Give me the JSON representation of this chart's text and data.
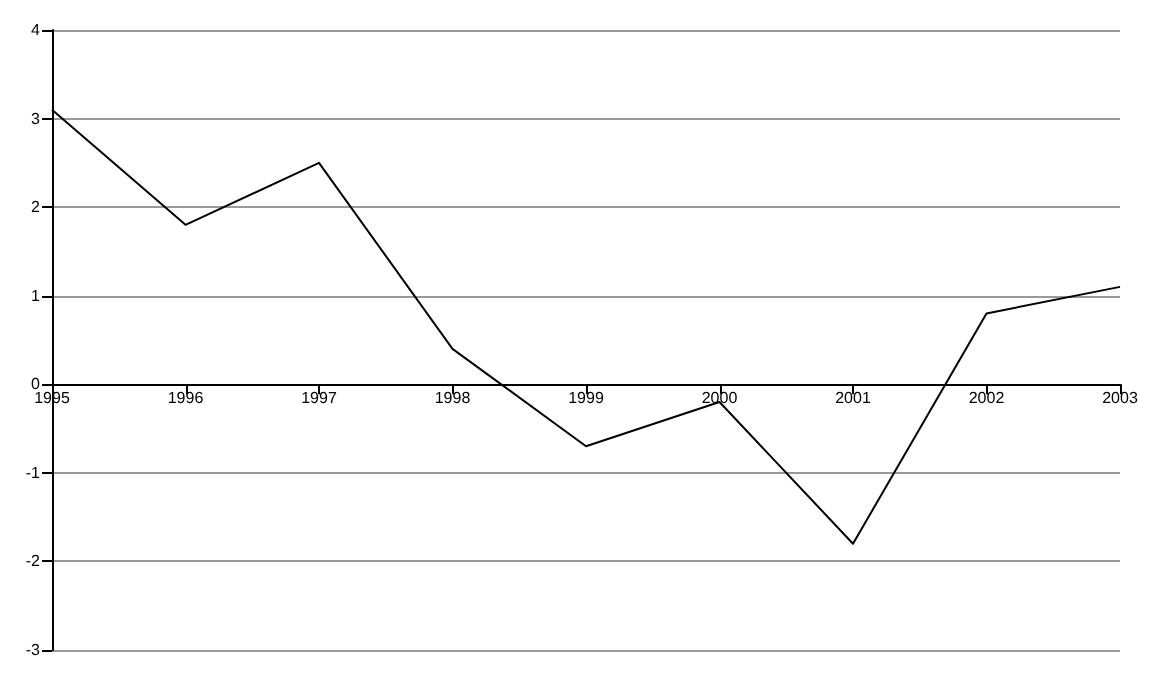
{
  "chart_data": {
    "type": "line",
    "categories": [
      "1995",
      "1996",
      "1997",
      "1998",
      "1999",
      "2000",
      "2001",
      "2002",
      "2003"
    ],
    "series": [
      {
        "color": "#000000",
        "values": [
          3.1,
          1.8,
          2.5,
          0.4,
          -0.7,
          -0.2,
          -1.8,
          0.8,
          1.1
        ]
      }
    ],
    "ylim": [
      -3,
      4
    ],
    "yticks": [
      -3,
      -2,
      -1,
      0,
      1,
      2,
      3,
      4
    ],
    "grid": "y",
    "marker": "none"
  }
}
